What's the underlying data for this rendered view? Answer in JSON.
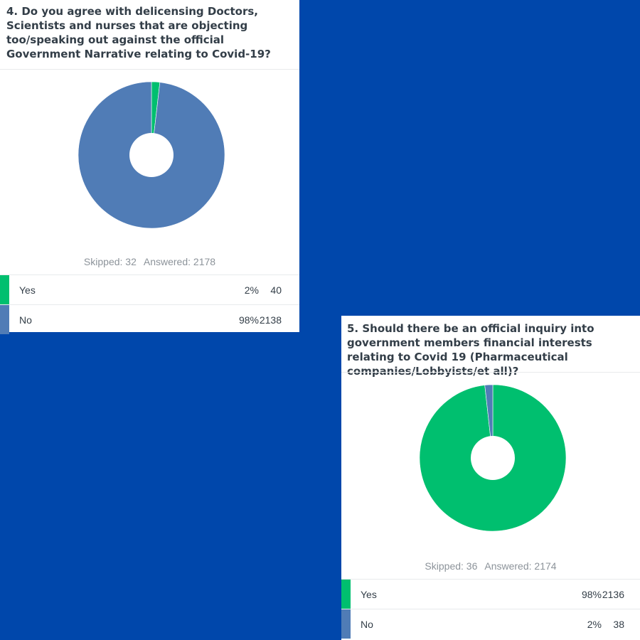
{
  "colors": {
    "yes": "#00bf6f",
    "no": "#507cb6",
    "background": "#0047ab"
  },
  "chart_data": [
    {
      "type": "pie",
      "donut": true,
      "title": "4. Do you agree with delicensing Doctors, Scientists and nurses that are objecting too/speaking out against the official Government Narrative relating to Covid-19?",
      "categories": [
        "Yes",
        "No"
      ],
      "percent_labels": [
        "2%",
        "98%"
      ],
      "values": [
        40,
        2138
      ],
      "colors": [
        "#00bf6f",
        "#507cb6"
      ],
      "skipped_label": "Skipped: 32",
      "answered_label": "Answered: 2178"
    },
    {
      "type": "pie",
      "donut": true,
      "title": "5. Should there be an official inquiry into government members financial interests relating to Covid 19 (Pharmaceutical companies/Lobbyists/et all)?",
      "categories": [
        "Yes",
        "No"
      ],
      "percent_labels": [
        "98%",
        "2%"
      ],
      "values": [
        2136,
        38
      ],
      "colors": [
        "#00bf6f",
        "#507cb6"
      ],
      "skipped_label": "Skipped: 36",
      "answered_label": "Answered: 2174"
    }
  ]
}
